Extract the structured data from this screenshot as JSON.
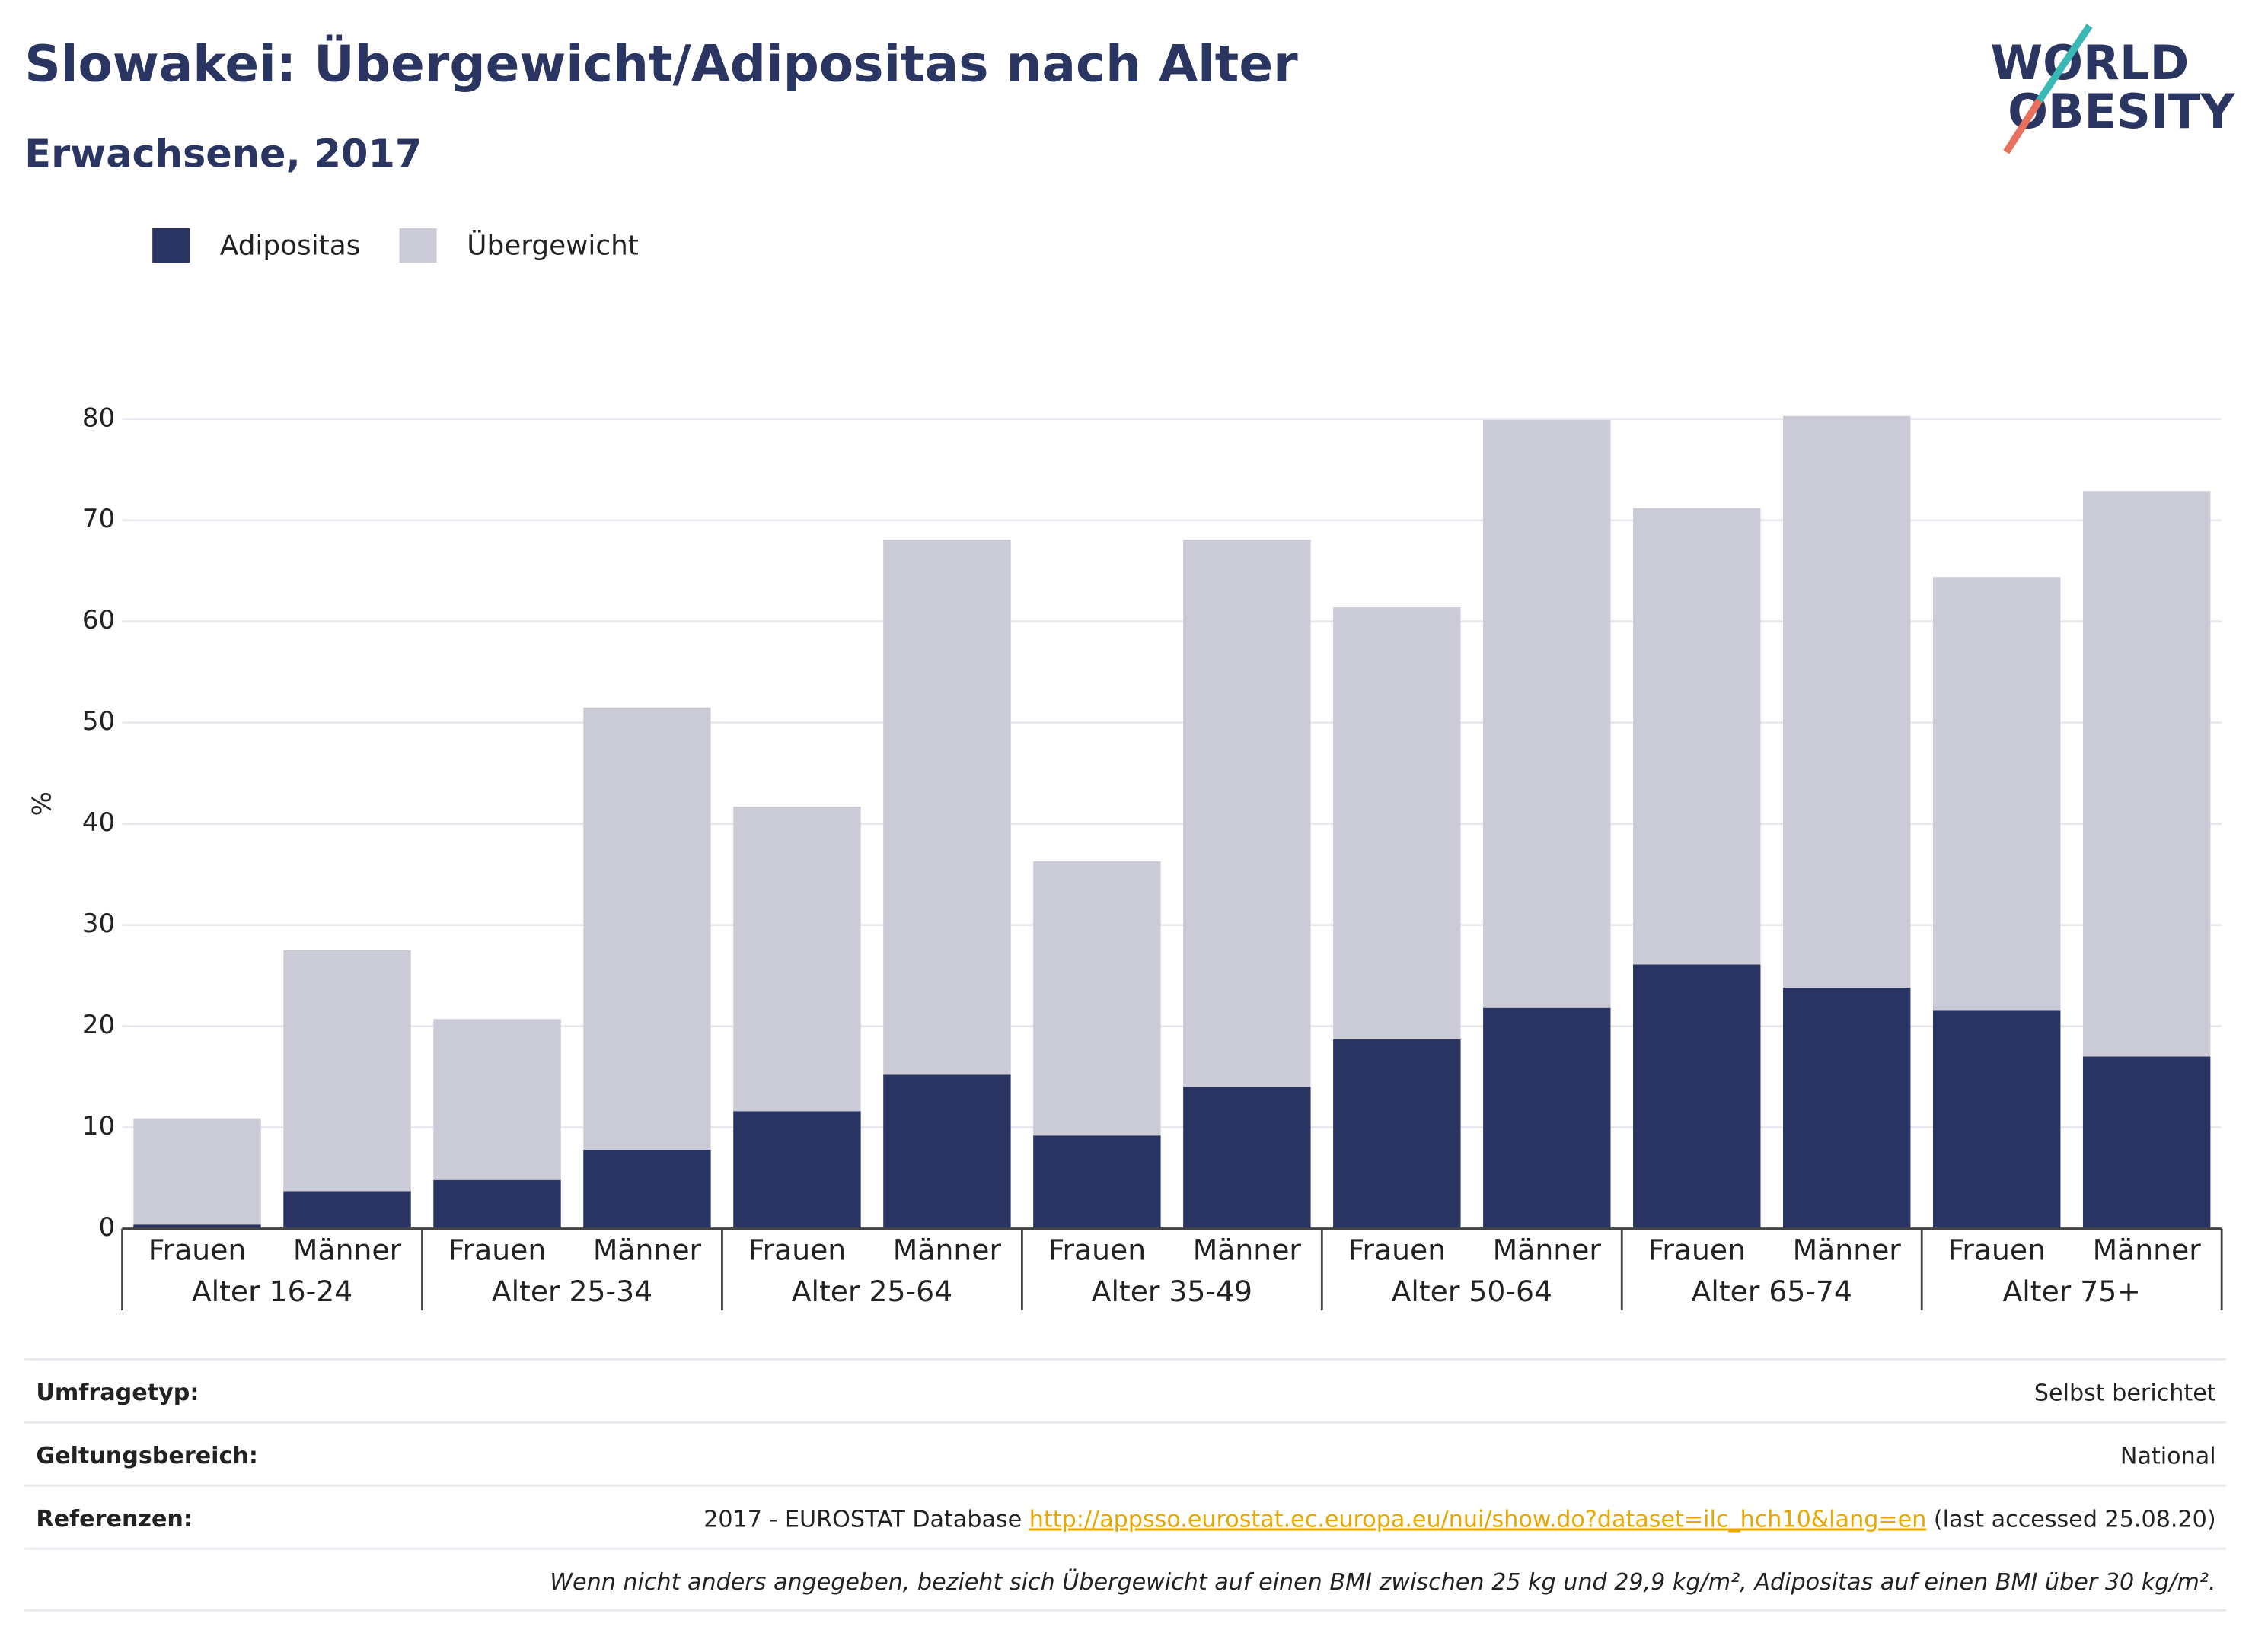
{
  "chart_data": {
    "type": "stacked_bar",
    "title": "Slowakei: Übergewicht/Adipositas nach Alter",
    "subtitle": "Erwachsene, 2017",
    "logo": [
      "WORLD",
      "OBESITY"
    ],
    "ylabel": "%",
    "ylim": [
      0,
      82
    ],
    "yticks": [
      0,
      10,
      20,
      30,
      40,
      50,
      60,
      70,
      80
    ],
    "grid": true,
    "legend": "top-left",
    "groups": [
      {
        "name": "Alter 16-24",
        "categories": [
          "Frauen",
          "Männer"
        ]
      },
      {
        "name": "Alter 25-34",
        "categories": [
          "Frauen",
          "Männer"
        ]
      },
      {
        "name": "Alter 25-64",
        "categories": [
          "Frauen",
          "Männer"
        ]
      },
      {
        "name": "Alter 35-49",
        "categories": [
          "Frauen",
          "Männer"
        ]
      },
      {
        "name": "Alter 50-64",
        "categories": [
          "Frauen",
          "Männer"
        ]
      },
      {
        "name": "Alter 65-74",
        "categories": [
          "Frauen",
          "Männer"
        ]
      },
      {
        "name": "Alter 75+",
        "categories": [
          "Frauen",
          "Männer"
        ]
      }
    ],
    "series": [
      {
        "name": "Adipositas",
        "color": "#293462",
        "values": [
          0.4,
          3.7,
          4.8,
          7.8,
          11.6,
          15.2,
          9.2,
          14.0,
          18.7,
          21.8,
          26.1,
          23.8,
          21.6,
          17.0
        ]
      },
      {
        "name": "Übergewicht",
        "color": "#cacbd6",
        "values": [
          10.5,
          23.8,
          15.9,
          43.7,
          30.1,
          52.9,
          27.1,
          54.1,
          42.7,
          58.1,
          45.1,
          56.5,
          42.8,
          55.9
        ]
      }
    ]
  },
  "footer": {
    "rows": [
      {
        "label": "Umfragetyp:",
        "value": "Selbst berichtet"
      },
      {
        "label": "Geltungsbereich:",
        "value": "National"
      },
      {
        "label": "Referenzen:",
        "value": "2017 - EUROSTAT Database ",
        "link": "http://appsso.eurostat.ec.europa.eu/nui/show.do?dataset=ilc_hch10&lang=en",
        "suffix": " (last accessed 25.08.20)"
      }
    ],
    "note": "Wenn nicht anders angegeben, bezieht sich Übergewicht auf einen BMI zwischen 25 kg und 29,9 kg/m², Adipositas auf einen BMI über 30 kg/m²."
  }
}
